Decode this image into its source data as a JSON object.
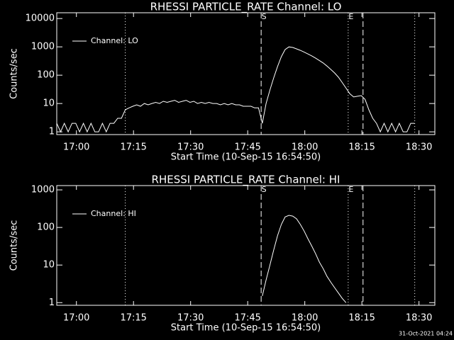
{
  "chart_data": [
    {
      "type": "line",
      "title": "RHESSI PARTICLE_RATE Channel: LO",
      "x_label": "Start Time (10-Sep-15 16:54:50)",
      "y_label": "Counts/sec",
      "log_y": true,
      "legend": "upper left",
      "xlim": [
        0,
        5960
      ],
      "ylim": [
        0.8,
        16000
      ],
      "xticks": [
        {
          "value": 310,
          "label": "17:00"
        },
        {
          "value": 1210,
          "label": "17:15"
        },
        {
          "value": 2110,
          "label": "17:30"
        },
        {
          "value": 3010,
          "label": "17:45"
        },
        {
          "value": 3910,
          "label": "18:00"
        },
        {
          "value": 4810,
          "label": "18:15"
        },
        {
          "value": 5710,
          "label": "18:30"
        }
      ],
      "yticks": [
        1,
        10,
        100,
        1000,
        10000
      ],
      "vlines": [
        {
          "x": 1080,
          "style": "dotted"
        },
        {
          "x": 3222,
          "style": "dashed",
          "label": "S"
        },
        {
          "x": 4594,
          "style": "dotted",
          "label": "E"
        },
        {
          "x": 4828,
          "style": "dashed"
        },
        {
          "x": 5643,
          "style": "dotted"
        }
      ],
      "series": [
        {
          "name": "Channel: LO",
          "color": "#ffffff",
          "x": [
            0,
            60,
            120,
            180,
            240,
            300,
            360,
            420,
            480,
            540,
            600,
            660,
            720,
            780,
            840,
            900,
            960,
            1020,
            1080,
            1140,
            1200,
            1260,
            1320,
            1380,
            1440,
            1500,
            1560,
            1620,
            1680,
            1740,
            1800,
            1860,
            1920,
            1980,
            2040,
            2100,
            2160,
            2220,
            2280,
            2340,
            2400,
            2460,
            2520,
            2580,
            2640,
            2700,
            2760,
            2820,
            2880,
            2940,
            3000,
            3060,
            3120,
            3180,
            3240,
            3300,
            3360,
            3420,
            3480,
            3540,
            3600,
            3660,
            3720,
            3780,
            3840,
            3900,
            3960,
            4020,
            4080,
            4140,
            4200,
            4260,
            4320,
            4380,
            4440,
            4500,
            4560,
            4620,
            4680,
            4740,
            4800,
            4860,
            4920,
            4980,
            5040,
            5100,
            5160,
            5220,
            5280,
            5340,
            5400,
            5460,
            5520,
            5580,
            5640
          ],
          "values": [
            2,
            1,
            2,
            1,
            2,
            2,
            1,
            2,
            1,
            2,
            1,
            1,
            2,
            1,
            2,
            2,
            3,
            3,
            6,
            7,
            8,
            9,
            8,
            10,
            9,
            10,
            11,
            10,
            12,
            11,
            12,
            13,
            11,
            12,
            13,
            11,
            12,
            10,
            11,
            10,
            11,
            10,
            10,
            9,
            10,
            9,
            10,
            9,
            9,
            8,
            8,
            8,
            7,
            7,
            2,
            10,
            30,
            80,
            200,
            450,
            800,
            1000,
            950,
            850,
            750,
            650,
            560,
            480,
            400,
            330,
            270,
            210,
            160,
            120,
            85,
            55,
            35,
            22,
            17,
            18,
            19,
            14,
            6,
            3,
            2,
            1,
            2,
            1,
            2,
            1,
            2,
            1,
            1,
            2,
            2
          ]
        }
      ]
    },
    {
      "type": "line",
      "title": "RHESSI PARTICLE_RATE Channel: HI",
      "x_label": "Start Time (10-Sep-15 16:54:50)",
      "y_label": "Counts/sec",
      "log_y": true,
      "legend": "upper left",
      "xlim": [
        0,
        5960
      ],
      "ylim": [
        0.85,
        1300
      ],
      "xticks": [
        {
          "value": 310,
          "label": "17:00"
        },
        {
          "value": 1210,
          "label": "17:15"
        },
        {
          "value": 2110,
          "label": "17:30"
        },
        {
          "value": 3010,
          "label": "17:45"
        },
        {
          "value": 3910,
          "label": "18:00"
        },
        {
          "value": 4810,
          "label": "18:15"
        },
        {
          "value": 5710,
          "label": "18:30"
        }
      ],
      "yticks": [
        1,
        10,
        100,
        1000
      ],
      "vlines": [
        {
          "x": 1080,
          "style": "dotted"
        },
        {
          "x": 3222,
          "style": "dashed",
          "label": "S"
        },
        {
          "x": 4594,
          "style": "dotted",
          "label": "E"
        },
        {
          "x": 4828,
          "style": "dashed"
        },
        {
          "x": 5643,
          "style": "dotted"
        }
      ],
      "series": [
        {
          "name": "Channel: HI",
          "color": "#ffffff",
          "x": [
            3240,
            3300,
            3360,
            3420,
            3480,
            3540,
            3600,
            3660,
            3720,
            3780,
            3840,
            3900,
            3960,
            4020,
            4080,
            4140,
            4200,
            4260,
            4320,
            4380,
            4440,
            4500,
            4560
          ],
          "values": [
            1.5,
            4,
            10,
            25,
            60,
            120,
            190,
            210,
            200,
            170,
            120,
            80,
            50,
            32,
            20,
            12,
            8,
            5,
            3.5,
            2.5,
            1.8,
            1.3,
            1
          ]
        }
      ]
    }
  ],
  "footer": "31-Oct-2021 04:24"
}
